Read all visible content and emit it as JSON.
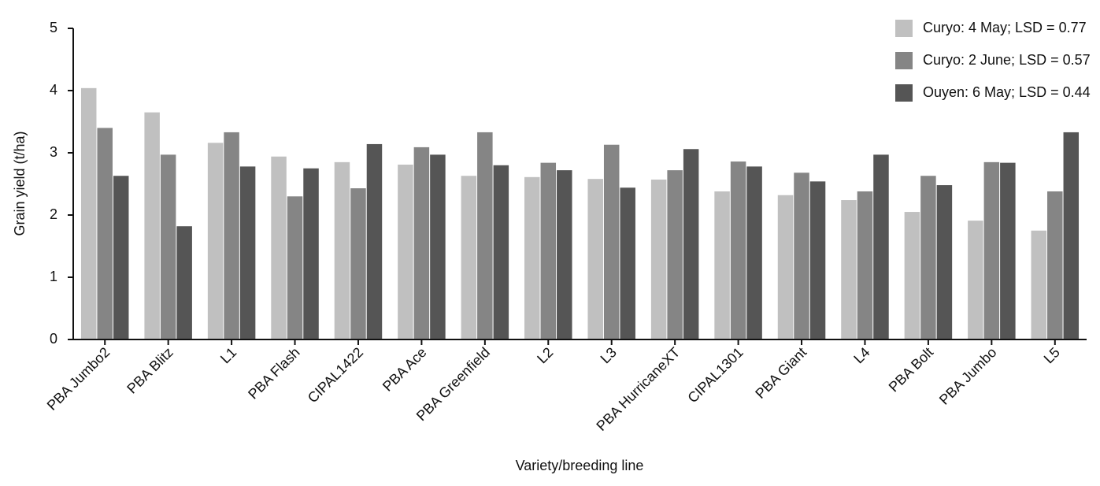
{
  "chart_data": {
    "type": "bar",
    "x_label": "Variety/breeding line",
    "y_label": "Grain yield (t/ha)",
    "categories": [
      "PBA Jumbo2",
      "PBA Blitz",
      "L1",
      "PBA Flash",
      "CIPAL1422",
      "PBA Ace",
      "PBA Greenfield",
      "L2",
      "L3",
      "PBA HurricaneXT",
      "CIPAL1301",
      "PBA Giant",
      "L4",
      "PBA Bolt",
      "PBA Jumbo",
      "L5"
    ],
    "series": [
      {
        "name": "Curyo: 4 May; LSD = 0.77",
        "color": "#c0c0c0",
        "values": [
          4.04,
          3.65,
          3.16,
          2.94,
          2.85,
          2.81,
          2.63,
          2.61,
          2.58,
          2.57,
          2.38,
          2.32,
          2.24,
          2.05,
          1.91,
          1.75
        ]
      },
      {
        "name": "Curyo: 2 June; LSD = 0.57",
        "color": "#858585",
        "values": [
          3.4,
          2.97,
          3.33,
          2.3,
          2.43,
          3.09,
          3.33,
          2.84,
          3.13,
          2.72,
          2.86,
          2.68,
          2.38,
          2.63,
          2.85,
          2.38
        ]
      },
      {
        "name": "Ouyen: 6 May; LSD = 0.44",
        "color": "#555555",
        "values": [
          2.63,
          1.82,
          2.78,
          2.75,
          3.14,
          2.97,
          2.8,
          2.72,
          2.44,
          3.06,
          2.78,
          2.54,
          2.97,
          2.48,
          2.84,
          3.33
        ]
      }
    ],
    "ylim": [
      0,
      5
    ],
    "yticks": [
      0,
      1,
      2,
      3,
      4,
      5
    ],
    "legend": "upper-right"
  }
}
